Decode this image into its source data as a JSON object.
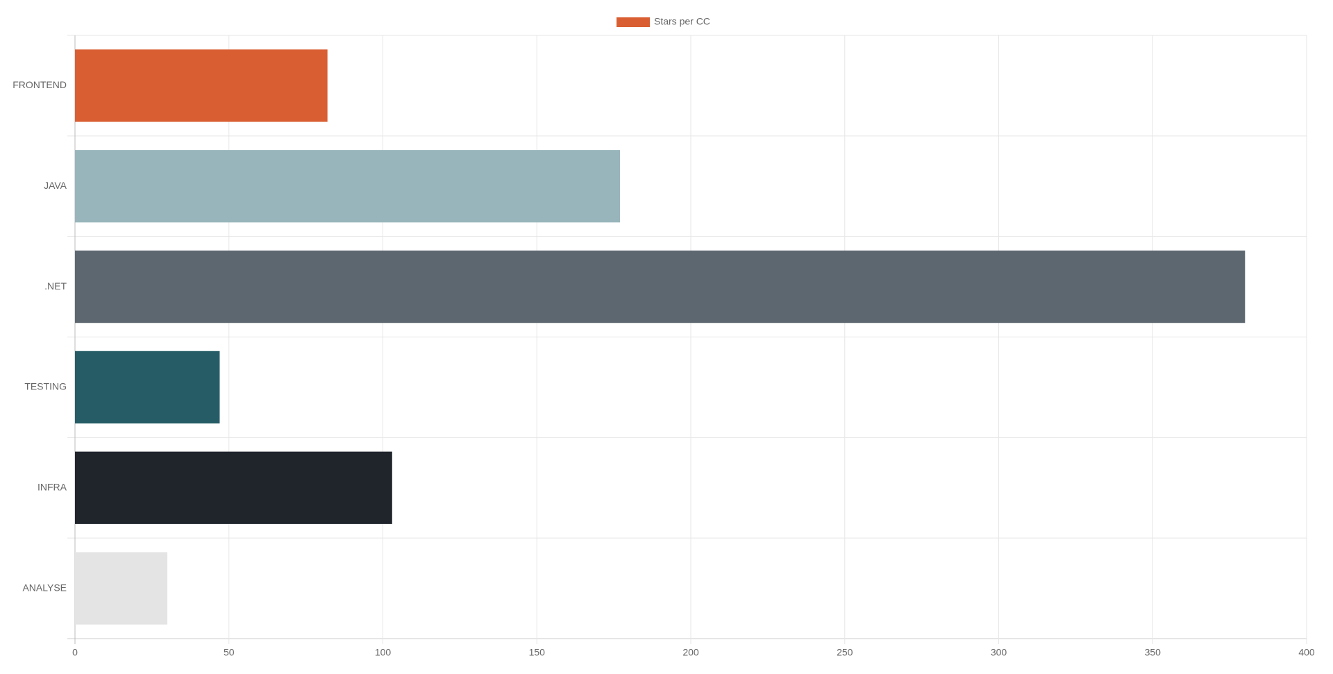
{
  "chart_data": {
    "type": "hbar",
    "categories": [
      "FRONTEND",
      "JAVA",
      ".NET",
      "TESTING",
      "INFRA",
      "ANALYSE"
    ],
    "series": [
      {
        "name": "Stars per CC",
        "colors": [
          "#d95f33",
          "#98b5bb",
          "#5d6770",
          "#255c66",
          "#20252c",
          "#e4e4e4"
        ],
        "values": [
          82,
          177,
          380,
          47,
          103,
          30
        ]
      }
    ],
    "xlim": [
      0,
      400
    ],
    "xticks": [
      0,
      50,
      100,
      150,
      200,
      250,
      300,
      350,
      400
    ],
    "grid": true,
    "legend": "top"
  }
}
